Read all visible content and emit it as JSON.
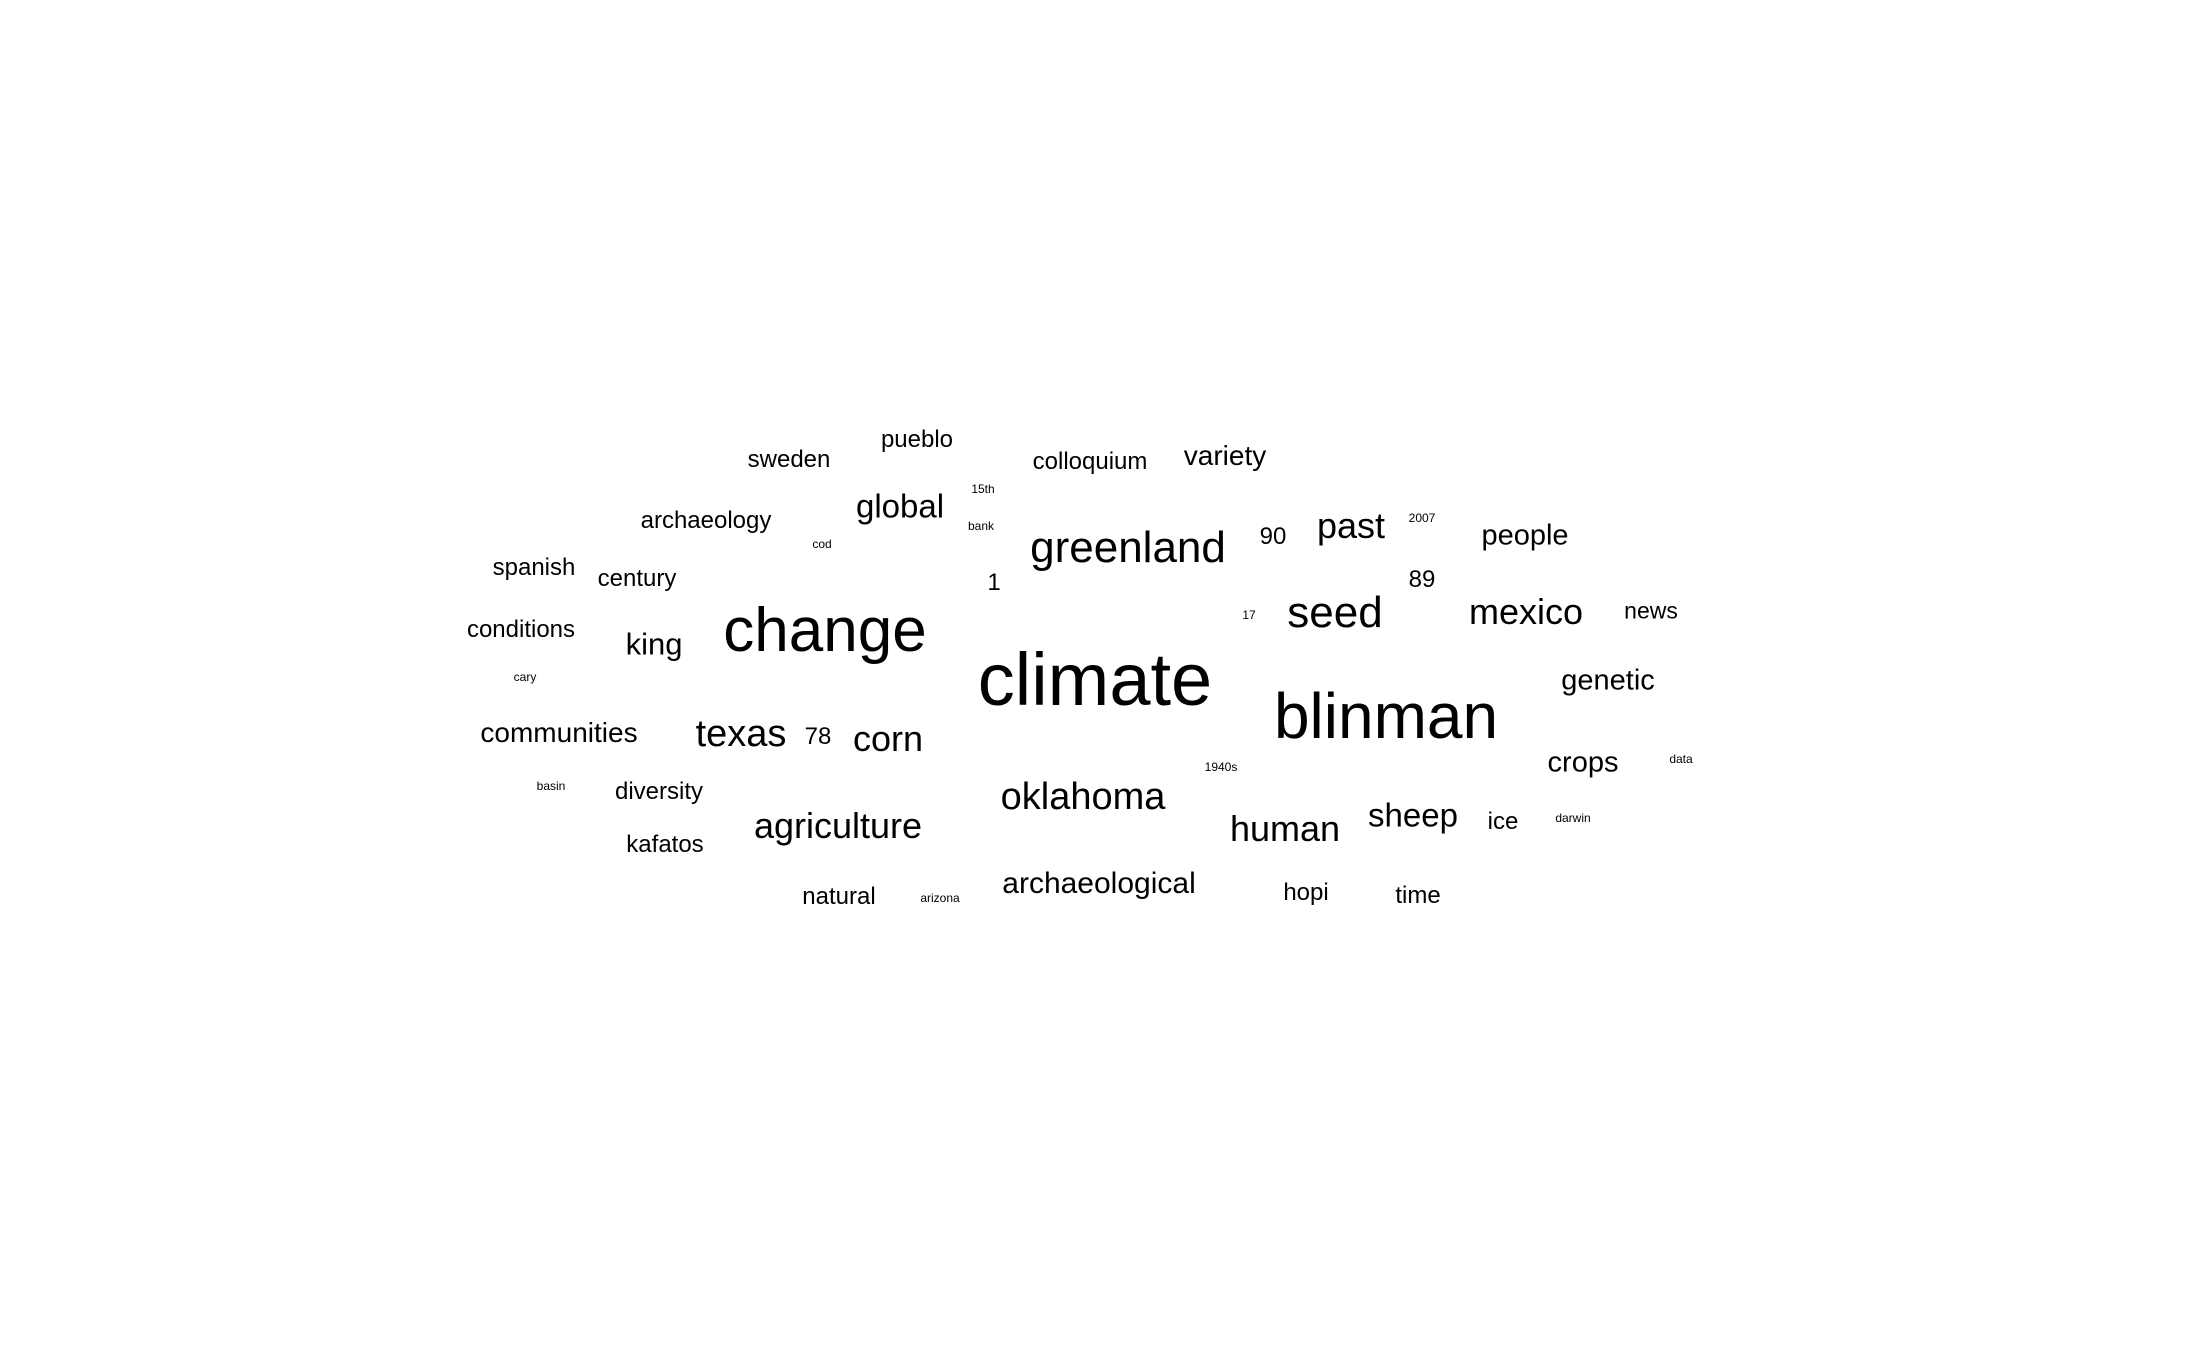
{
  "word_cloud": {
    "text_color": "#000000",
    "background_color": "#ffffff",
    "words": [
      "climate",
      "blinman",
      "change",
      "greenland",
      "seed",
      "mexico",
      "texas",
      "oklahoma",
      "corn",
      "agriculture",
      "past",
      "human",
      "sheep",
      "global",
      "king",
      "archaeological",
      "genetic",
      "crops",
      "people",
      "communities",
      "variety",
      "pueblo",
      "archaeology",
      "sweden",
      "colloquium",
      "spanish",
      "century",
      "conditions",
      "diversity",
      "kafatos",
      "natural",
      "hopi",
      "time",
      "ice",
      "news",
      "90",
      "89",
      "78",
      "1",
      "15th",
      "bank",
      "cod",
      "cary",
      "basin",
      "arizona",
      "1940s",
      "17",
      "2007",
      "data",
      "darwin"
    ]
  }
}
